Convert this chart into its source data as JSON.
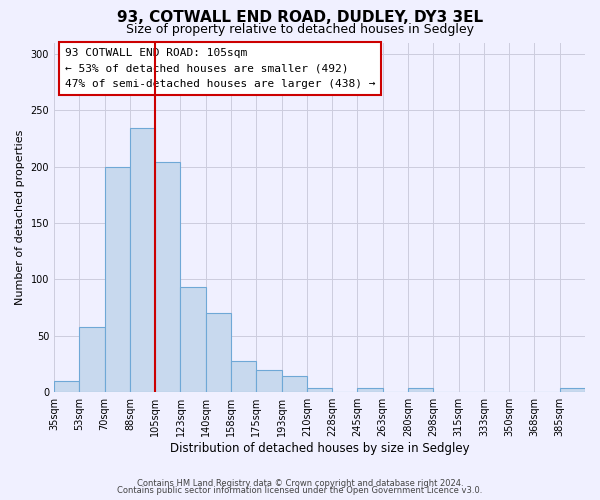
{
  "title": "93, COTWALL END ROAD, DUDLEY, DY3 3EL",
  "subtitle": "Size of property relative to detached houses in Sedgley",
  "xlabel": "Distribution of detached houses by size in Sedgley",
  "ylabel": "Number of detached properties",
  "bar_values": [
    10,
    58,
    200,
    234,
    204,
    93,
    70,
    28,
    20,
    14,
    4,
    0,
    4,
    0,
    4,
    0,
    0,
    0,
    0,
    0,
    4
  ],
  "bar_labels": [
    "35sqm",
    "53sqm",
    "70sqm",
    "88sqm",
    "105sqm",
    "123sqm",
    "140sqm",
    "158sqm",
    "175sqm",
    "193sqm",
    "210sqm",
    "228sqm",
    "245sqm",
    "263sqm",
    "280sqm",
    "298sqm",
    "315sqm",
    "333sqm",
    "350sqm",
    "368sqm",
    "385sqm"
  ],
  "bar_color": "#c8d9ee",
  "bar_edge_color": "#6fa8d6",
  "ylim": [
    0,
    310
  ],
  "yticks": [
    0,
    50,
    100,
    150,
    200,
    250,
    300
  ],
  "vline_color": "#cc0000",
  "annotation_line1": "93 COTWALL END ROAD: 105sqm",
  "annotation_line2": "← 53% of detached houses are smaller (492)",
  "annotation_line3": "47% of semi-detached houses are larger (438) →",
  "footer_line1": "Contains HM Land Registry data © Crown copyright and database right 2024.",
  "footer_line2": "Contains public sector information licensed under the Open Government Licence v3.0.",
  "bg_color": "#f0f0ff",
  "grid_color": "#ccccdd"
}
